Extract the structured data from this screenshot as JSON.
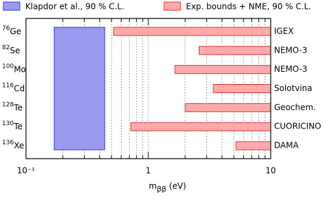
{
  "chart_data": {
    "type": "range-bar",
    "categories": [
      {
        "mass": "76",
        "element": "Ge",
        "experiment": "IGEX"
      },
      {
        "mass": "82",
        "element": "Se",
        "experiment": "NEMO-3"
      },
      {
        "mass": "100",
        "element": "Mo",
        "experiment": "NEMO-3"
      },
      {
        "mass": "116",
        "element": "Cd",
        "experiment": "Solotvina"
      },
      {
        "mass": "128",
        "element": "Te",
        "experiment": "Geochem."
      },
      {
        "mass": "130",
        "element": "Te",
        "experiment": "CUORICINO"
      },
      {
        "mass": "136",
        "element": "Xe",
        "experiment": "DAMA"
      }
    ],
    "series": [
      {
        "name": "Klapdor et al., 90 % C.L.",
        "color": "#9a9af0",
        "edge": "#3333cc",
        "span": "all",
        "low": [
          0.17
        ],
        "high": [
          0.44
        ]
      },
      {
        "name": "Exp. bounds + NME, 90 % C.L.",
        "color": "#ffaaaa",
        "edge": "#dd3333",
        "low": [
          0.52,
          2.6,
          1.65,
          3.4,
          2.0,
          0.72,
          5.2
        ],
        "high": [
          10,
          10,
          10,
          10,
          10,
          10,
          10
        ]
      }
    ],
    "xlabel": {
      "main": "m",
      "sub": "ββ",
      "unit": "(eV)"
    },
    "log_x": true,
    "xlim": [
      0.1,
      10
    ],
    "xticks": [
      {
        "value": 0.1,
        "label": "10⁻¹"
      },
      1,
      10
    ],
    "minor_xticks": [
      0.2,
      0.3,
      0.4,
      0.5,
      0.6,
      0.7,
      0.8,
      0.9,
      2,
      3,
      4,
      5,
      6,
      7,
      8,
      9
    ],
    "grid": true
  }
}
